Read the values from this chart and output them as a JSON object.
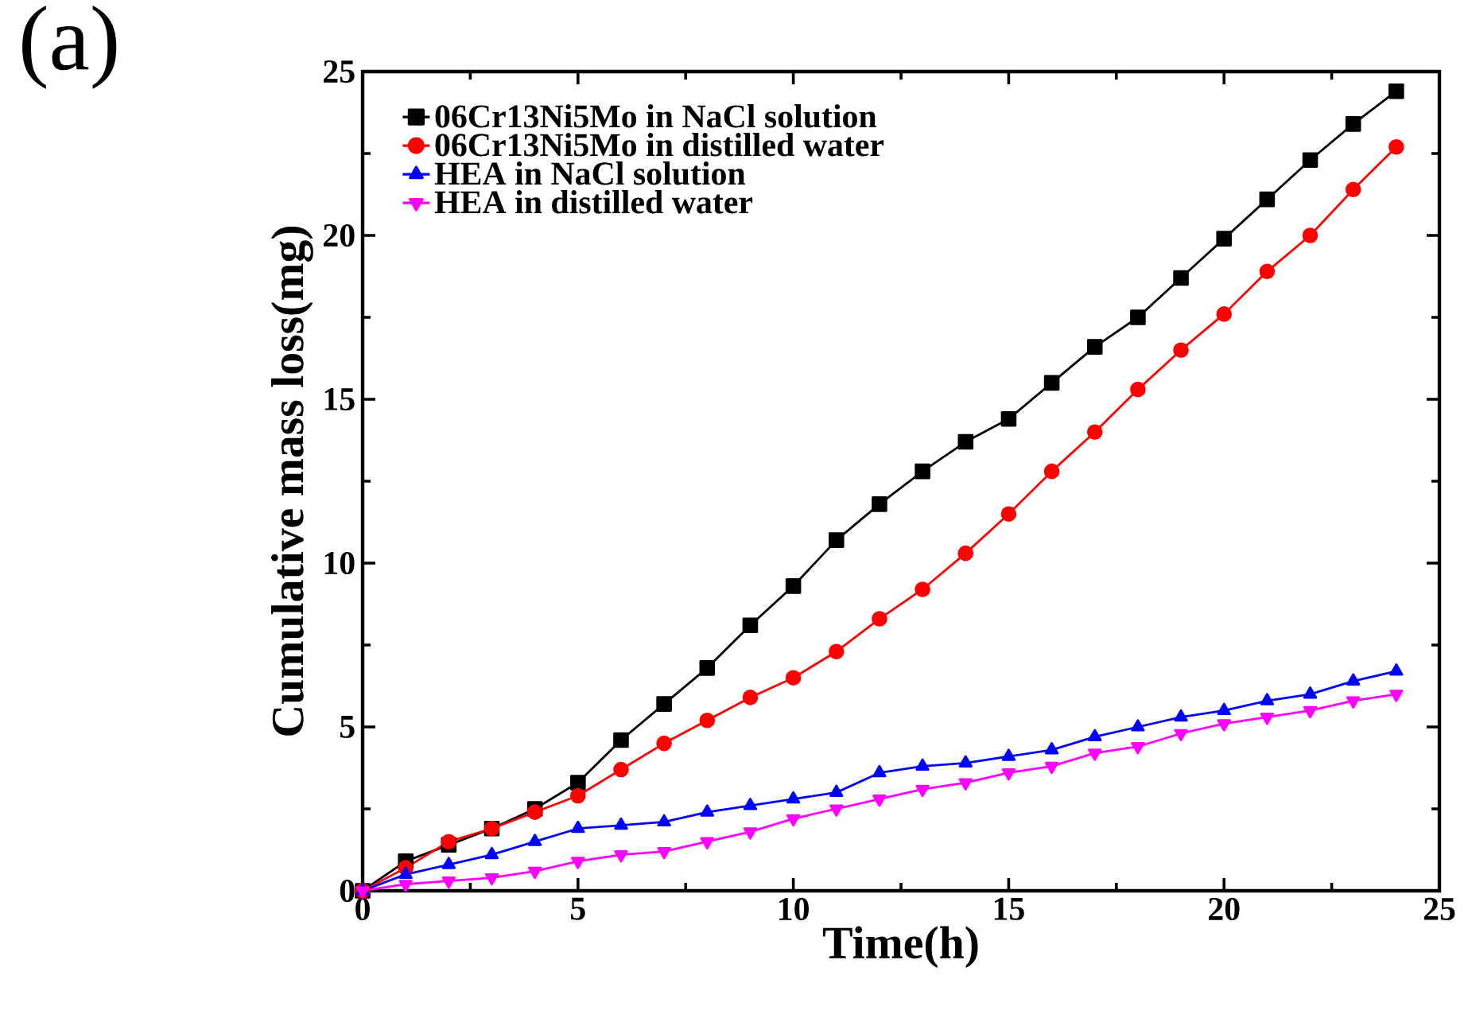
{
  "chart_data": {
    "type": "line",
    "xlabel": "Time(h)",
    "ylabel": "Cumulative mass loss(mg)",
    "annotations": [
      "(a)"
    ],
    "x": [
      0,
      1,
      2,
      3,
      4,
      5,
      6,
      7,
      8,
      9,
      10,
      11,
      12,
      13,
      14,
      15,
      16,
      17,
      18,
      19,
      20,
      21,
      22,
      23,
      24
    ],
    "series": [
      {
        "name": "06Cr13Ni5Mo in NaCl solution",
        "color": "#000000",
        "marker": "square",
        "values": [
          0,
          0.9,
          1.4,
          1.9,
          2.5,
          3.3,
          4.6,
          5.7,
          6.8,
          8.1,
          9.3,
          10.7,
          11.8,
          12.8,
          13.7,
          14.4,
          15.5,
          16.6,
          17.5,
          18.7,
          19.9,
          21.1,
          22.3,
          23.4,
          24.4
        ]
      },
      {
        "name": "06Cr13Ni5Mo in distilled water",
        "color": "#ff0000",
        "marker": "circle",
        "values": [
          0,
          0.7,
          1.5,
          1.9,
          2.4,
          2.9,
          3.7,
          4.5,
          5.2,
          5.9,
          6.5,
          7.3,
          8.3,
          9.2,
          10.3,
          11.5,
          12.8,
          14.0,
          15.3,
          16.5,
          17.6,
          18.9,
          20.0,
          21.4,
          22.7
        ]
      },
      {
        "name": "HEA in NaCl solution",
        "color": "#0000ff",
        "marker": "triangle",
        "values": [
          0,
          0.5,
          0.8,
          1.1,
          1.5,
          1.9,
          2.0,
          2.1,
          2.4,
          2.6,
          2.8,
          3.0,
          3.6,
          3.8,
          3.9,
          4.1,
          4.3,
          4.7,
          5.0,
          5.3,
          5.5,
          5.8,
          6.0,
          6.4,
          6.7
        ]
      },
      {
        "name": "HEA in distilled water",
        "color": "#ff00ff",
        "marker": "triangle-down",
        "values": [
          0,
          0.2,
          0.3,
          0.4,
          0.6,
          0.9,
          1.1,
          1.2,
          1.5,
          1.8,
          2.2,
          2.5,
          2.8,
          3.1,
          3.3,
          3.6,
          3.8,
          4.2,
          4.4,
          4.8,
          5.1,
          5.3,
          5.5,
          5.8,
          6.0
        ]
      }
    ],
    "xlim": [
      0,
      25
    ],
    "ylim": [
      0,
      25
    ],
    "xticks": [
      0,
      5,
      10,
      15,
      20,
      25
    ],
    "yticks": [
      0,
      5,
      10,
      15,
      20,
      25
    ],
    "grid": false,
    "legend": "top left",
    "line_style": "solid"
  }
}
